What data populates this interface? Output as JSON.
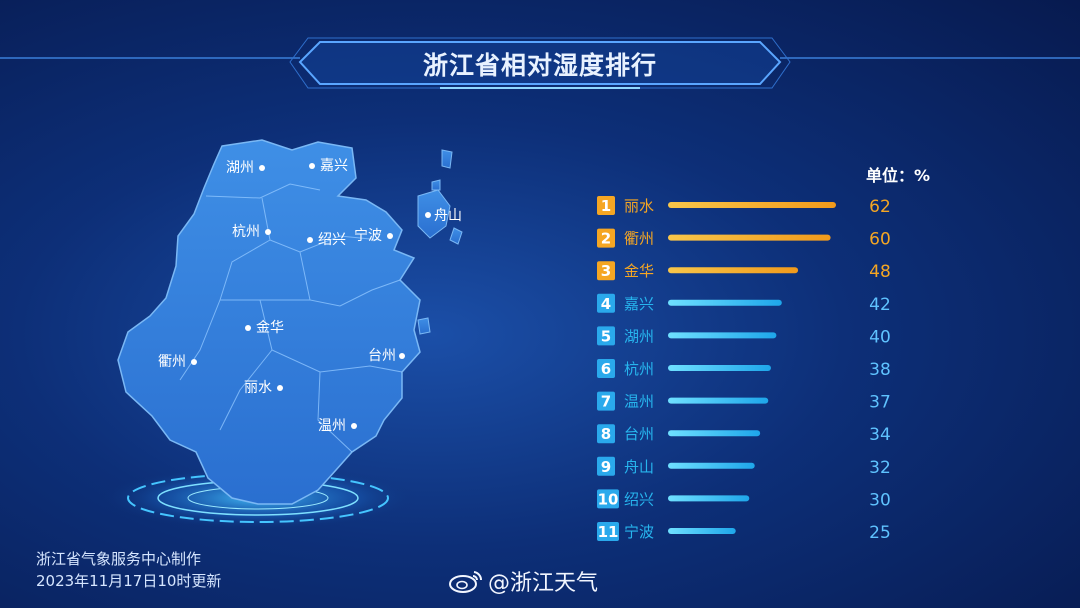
{
  "header": {
    "title": "浙江省相对湿度排行"
  },
  "unit_label": "单位：%",
  "map": {
    "cities": [
      {
        "name": "湖州"
      },
      {
        "name": "嘉兴"
      },
      {
        "name": "舟山"
      },
      {
        "name": "杭州"
      },
      {
        "name": "绍兴"
      },
      {
        "name": "宁波"
      },
      {
        "name": "金华"
      },
      {
        "name": "衢州"
      },
      {
        "name": "台州"
      },
      {
        "name": "丽水"
      },
      {
        "name": "温州"
      }
    ]
  },
  "footer": {
    "org": "浙江省气象服务中心制作",
    "updated": "2023年11月17日10时更新",
    "weibo": "@浙江天气"
  },
  "colors": {
    "highlight": "#f5a623",
    "normal": "#27b5ee",
    "value_normal": "#5fc3ff"
  },
  "chart_data": {
    "type": "bar",
    "categories": [
      "丽水",
      "衢州",
      "金华",
      "嘉兴",
      "湖州",
      "杭州",
      "温州",
      "台州",
      "舟山",
      "绍兴",
      "宁波"
    ],
    "ranks": [
      "1",
      "2",
      "3",
      "4",
      "5",
      "6",
      "7",
      "8",
      "9",
      "10",
      "11"
    ],
    "values": [
      62,
      60,
      48,
      42,
      40,
      38,
      37,
      34,
      32,
      30,
      25
    ],
    "ylabel": "单位：%",
    "title": "浙江省相对湿度排行",
    "highlighted_top": 3
  }
}
